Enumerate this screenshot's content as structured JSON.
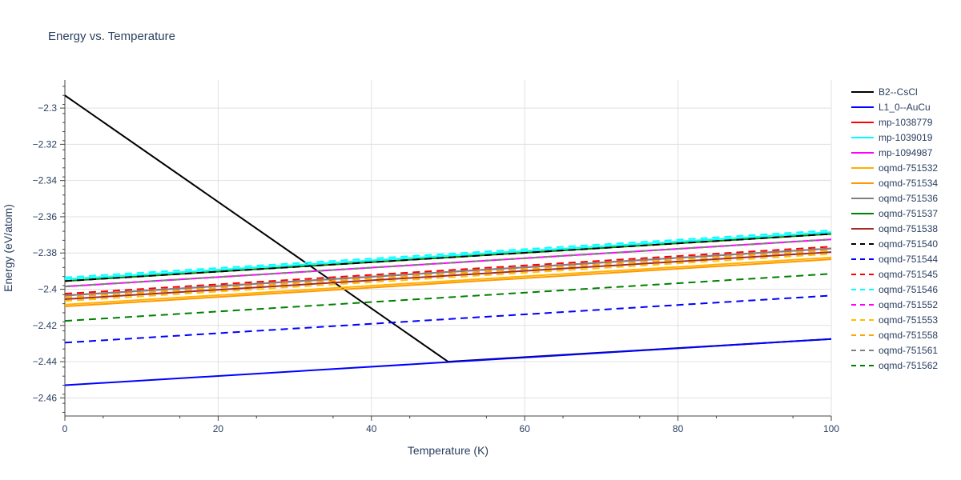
{
  "chart_data": {
    "type": "line",
    "title": "Energy vs. Temperature",
    "xlabel": "Temperature (K)",
    "ylabel": "Energy (eV/atom)",
    "xlim": [
      0,
      100
    ],
    "ylim": [
      -2.47,
      -2.2845
    ],
    "x_ticks": [
      0,
      20,
      40,
      60,
      80,
      100
    ],
    "x_tick_labels": [
      "0",
      "20",
      "40",
      "60",
      "80",
      "100"
    ],
    "y_ticks": [
      -2.46,
      -2.44,
      -2.42,
      -2.4,
      -2.38,
      -2.36,
      -2.34,
      -2.32,
      -2.3
    ],
    "y_tick_labels": [
      "−2.46",
      "−2.44",
      "−2.42",
      "−2.4",
      "−2.38",
      "−2.36",
      "−2.34",
      "−2.32",
      "−2.3"
    ],
    "grid": true,
    "legend_position": "right",
    "series": [
      {
        "name": "B2--CsCl",
        "color": "#000000",
        "dash": "solid",
        "x": [
          0,
          50,
          100
        ],
        "y": [
          -2.293,
          -2.44,
          -2.4275
        ]
      },
      {
        "name": "L1_0--AuCu",
        "color": "#0000ff",
        "dash": "solid",
        "x": [
          0,
          100
        ],
        "y": [
          -2.453,
          -2.4275
        ]
      },
      {
        "name": "mp-1038779",
        "color": "#ff0000",
        "dash": "solid",
        "x": [
          0,
          100
        ],
        "y": [
          -2.4035,
          -2.3775
        ]
      },
      {
        "name": "mp-1039019",
        "color": "#00ffff",
        "dash": "solid",
        "x": [
          0,
          100
        ],
        "y": [
          -2.3945,
          -2.3685
        ]
      },
      {
        "name": "mp-1094987",
        "color": "#ff00ff",
        "dash": "solid",
        "x": [
          0,
          100
        ],
        "y": [
          -2.3985,
          -2.3725
        ]
      },
      {
        "name": "oqmd-751532",
        "color": "#ffb000",
        "dash": "solid",
        "x": [
          0,
          100
        ],
        "y": [
          -2.4085,
          -2.3825
        ]
      },
      {
        "name": "oqmd-751534",
        "color": "#ff9900",
        "dash": "solid",
        "x": [
          0,
          100
        ],
        "y": [
          -2.4095,
          -2.3835
        ]
      },
      {
        "name": "oqmd-751536",
        "color": "#808080",
        "dash": "solid",
        "x": [
          0,
          100
        ],
        "y": [
          -2.4035,
          -2.3775
        ]
      },
      {
        "name": "oqmd-751537",
        "color": "#008000",
        "dash": "solid",
        "x": [
          0,
          100
        ],
        "y": [
          -2.3955,
          -2.3695
        ]
      },
      {
        "name": "oqmd-751538",
        "color": "#a52a2a",
        "dash": "solid",
        "x": [
          0,
          100
        ],
        "y": [
          -2.4055,
          -2.3795
        ]
      },
      {
        "name": "oqmd-751540",
        "color": "#000000",
        "dash": "dash",
        "x": [
          0,
          100
        ],
        "y": [
          -2.3955,
          -2.3695
        ]
      },
      {
        "name": "oqmd-751544",
        "color": "#0000ff",
        "dash": "dash",
        "x": [
          0,
          100
        ],
        "y": [
          -2.4295,
          -2.4035
        ]
      },
      {
        "name": "oqmd-751545",
        "color": "#ff0000",
        "dash": "dash",
        "x": [
          0,
          100
        ],
        "y": [
          -2.4025,
          -2.3765
        ]
      },
      {
        "name": "oqmd-751546",
        "color": "#00ffff",
        "dash": "dash",
        "x": [
          0,
          100
        ],
        "y": [
          -2.3935,
          -2.3675
        ]
      },
      {
        "name": "oqmd-751552",
        "color": "#ff00ff",
        "dash": "dash",
        "x": [
          0,
          100
        ],
        "y": [
          -2.3985,
          -2.3725
        ]
      },
      {
        "name": "oqmd-751553",
        "color": "#ffc000",
        "dash": "dash",
        "x": [
          0,
          100
        ],
        "y": [
          -2.4065,
          -2.3805
        ]
      },
      {
        "name": "oqmd-751558",
        "color": "#ffa500",
        "dash": "dash",
        "x": [
          0,
          100
        ],
        "y": [
          -2.4045,
          -2.3785
        ]
      },
      {
        "name": "oqmd-751561",
        "color": "#808080",
        "dash": "dash",
        "x": [
          0,
          100
        ],
        "y": [
          -2.3985,
          -2.3725
        ]
      },
      {
        "name": "oqmd-751562",
        "color": "#008000",
        "dash": "dash",
        "x": [
          0,
          100
        ],
        "y": [
          -2.4175,
          -2.3915
        ]
      }
    ]
  }
}
